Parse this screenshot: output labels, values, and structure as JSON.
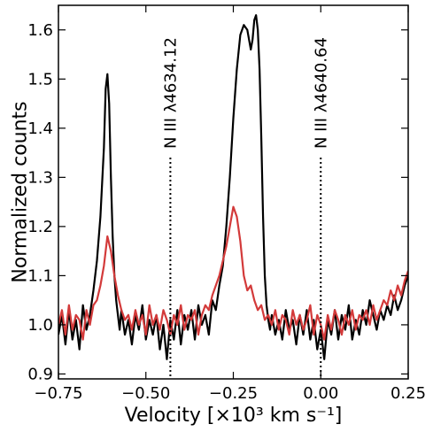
{
  "chart_data": {
    "type": "line",
    "title": "",
    "xlabel": "Velocity [×10³ km s⁻¹]",
    "ylabel": "Normalized counts",
    "xlim": [
      -0.75,
      0.25
    ],
    "ylim": [
      0.89,
      1.65
    ],
    "x_ticks": [
      -0.75,
      -0.5,
      -0.25,
      0.0,
      0.25
    ],
    "x_tick_labels": [
      "−0.75",
      "−0.50",
      "−0.25",
      "0.00",
      "0.25"
    ],
    "y_ticks": [
      0.9,
      1.0,
      1.1,
      1.2,
      1.3,
      1.4,
      1.5,
      1.6
    ],
    "y_tick_labels": [
      "0.9",
      "1.0",
      "1.1",
      "1.2",
      "1.3",
      "1.4",
      "1.5",
      "1.6"
    ],
    "grid": false,
    "legend": "none",
    "series": [
      {
        "color": "#000000",
        "x": [
          -0.75,
          -0.74,
          -0.73,
          -0.72,
          -0.71,
          -0.7,
          -0.69,
          -0.68,
          -0.67,
          -0.66,
          -0.65,
          -0.64,
          -0.63,
          -0.62,
          -0.615,
          -0.61,
          -0.605,
          -0.6,
          -0.595,
          -0.59,
          -0.585,
          -0.58,
          -0.575,
          -0.57,
          -0.56,
          -0.55,
          -0.54,
          -0.53,
          -0.52,
          -0.51,
          -0.5,
          -0.49,
          -0.48,
          -0.47,
          -0.46,
          -0.45,
          -0.44,
          -0.43,
          -0.42,
          -0.41,
          -0.4,
          -0.39,
          -0.38,
          -0.37,
          -0.36,
          -0.35,
          -0.34,
          -0.33,
          -0.32,
          -0.31,
          -0.3,
          -0.29,
          -0.28,
          -0.27,
          -0.26,
          -0.25,
          -0.24,
          -0.23,
          -0.22,
          -0.21,
          -0.2,
          -0.195,
          -0.19,
          -0.185,
          -0.18,
          -0.175,
          -0.17,
          -0.165,
          -0.16,
          -0.155,
          -0.15,
          -0.145,
          -0.14,
          -0.13,
          -0.12,
          -0.11,
          -0.1,
          -0.09,
          -0.08,
          -0.07,
          -0.06,
          -0.05,
          -0.04,
          -0.03,
          -0.02,
          -0.01,
          0.0,
          0.01,
          0.02,
          0.03,
          0.04,
          0.05,
          0.06,
          0.07,
          0.08,
          0.09,
          0.1,
          0.11,
          0.12,
          0.13,
          0.14,
          0.15,
          0.16,
          0.17,
          0.18,
          0.19,
          0.2,
          0.21,
          0.22,
          0.23,
          0.24,
          0.25
        ],
        "y": [
          0.98,
          1.02,
          0.96,
          1.03,
          0.97,
          1.01,
          0.95,
          1.04,
          0.99,
          1.02,
          1.07,
          1.13,
          1.22,
          1.36,
          1.48,
          1.51,
          1.45,
          1.3,
          1.18,
          1.1,
          1.05,
          1.02,
          0.99,
          1.03,
          0.98,
          1.01,
          0.96,
          1.02,
          0.99,
          1.04,
          0.97,
          1.01,
          0.98,
          1.02,
          0.95,
          1.0,
          0.93,
          1.01,
          0.97,
          1.03,
          0.96,
          1.02,
          0.99,
          1.03,
          0.97,
          1.04,
          1.0,
          1.02,
          0.98,
          1.05,
          1.03,
          1.08,
          1.12,
          1.2,
          1.3,
          1.42,
          1.52,
          1.59,
          1.61,
          1.6,
          1.56,
          1.58,
          1.62,
          1.63,
          1.6,
          1.52,
          1.38,
          1.22,
          1.1,
          1.04,
          1.01,
          0.99,
          1.02,
          0.98,
          1.01,
          0.97,
          1.03,
          0.99,
          1.01,
          0.96,
          1.02,
          0.98,
          1.03,
          0.97,
          1.01,
          0.95,
          0.99,
          0.93,
          1.01,
          0.98,
          1.03,
          0.97,
          1.02,
          0.99,
          1.04,
          0.97,
          1.01,
          0.98,
          1.03,
          1.0,
          1.05,
          1.02,
          0.99,
          1.03,
          1.01,
          1.04,
          1.02,
          1.06,
          1.03,
          1.05,
          1.08,
          1.1
        ]
      },
      {
        "color": "#d33a3a",
        "x": [
          -0.75,
          -0.74,
          -0.73,
          -0.72,
          -0.71,
          -0.7,
          -0.69,
          -0.68,
          -0.67,
          -0.66,
          -0.65,
          -0.64,
          -0.63,
          -0.62,
          -0.61,
          -0.6,
          -0.59,
          -0.58,
          -0.57,
          -0.56,
          -0.55,
          -0.54,
          -0.53,
          -0.52,
          -0.51,
          -0.5,
          -0.49,
          -0.48,
          -0.47,
          -0.46,
          -0.45,
          -0.44,
          -0.43,
          -0.42,
          -0.41,
          -0.4,
          -0.39,
          -0.38,
          -0.37,
          -0.36,
          -0.35,
          -0.34,
          -0.33,
          -0.32,
          -0.31,
          -0.3,
          -0.29,
          -0.28,
          -0.27,
          -0.26,
          -0.25,
          -0.24,
          -0.23,
          -0.22,
          -0.21,
          -0.2,
          -0.19,
          -0.18,
          -0.17,
          -0.16,
          -0.15,
          -0.14,
          -0.13,
          -0.12,
          -0.11,
          -0.1,
          -0.09,
          -0.08,
          -0.07,
          -0.06,
          -0.05,
          -0.04,
          -0.03,
          -0.02,
          -0.01,
          0.0,
          0.01,
          0.02,
          0.03,
          0.04,
          0.05,
          0.06,
          0.07,
          0.08,
          0.09,
          0.1,
          0.11,
          0.12,
          0.13,
          0.14,
          0.15,
          0.16,
          0.17,
          0.18,
          0.19,
          0.2,
          0.21,
          0.22,
          0.23,
          0.24,
          0.25
        ],
        "y": [
          1.0,
          1.03,
          0.98,
          1.04,
          0.99,
          1.02,
          1.01,
          0.97,
          1.03,
          1.0,
          1.04,
          1.05,
          1.08,
          1.12,
          1.18,
          1.15,
          1.1,
          1.06,
          1.03,
          1.01,
          1.02,
          0.99,
          1.03,
          1.0,
          1.02,
          0.98,
          1.04,
          1.0,
          1.02,
          0.99,
          1.03,
          1.01,
          0.98,
          1.02,
          1.0,
          1.04,
          0.99,
          1.02,
          1.01,
          1.03,
          0.98,
          1.02,
          1.04,
          1.03,
          1.06,
          1.08,
          1.1,
          1.13,
          1.16,
          1.2,
          1.24,
          1.22,
          1.17,
          1.1,
          1.07,
          1.08,
          1.05,
          1.03,
          1.04,
          1.01,
          1.02,
          1.0,
          1.03,
          0.99,
          1.02,
          1.01,
          0.98,
          1.03,
          1.0,
          1.02,
          0.99,
          1.01,
          1.04,
          0.98,
          1.02,
          1.0,
          0.97,
          1.02,
          0.99,
          1.03,
          1.01,
          0.98,
          1.02,
          1.0,
          1.03,
          0.99,
          1.02,
          1.01,
          1.03,
          1.0,
          1.04,
          1.01,
          1.03,
          1.05,
          1.04,
          1.07,
          1.05,
          1.08,
          1.06,
          1.09,
          1.11
        ]
      }
    ],
    "annotations": [
      {
        "label": "N III λ4634.12",
        "x": -0.43
      },
      {
        "label": "N III λ4640.64",
        "x": 0.0
      }
    ]
  }
}
